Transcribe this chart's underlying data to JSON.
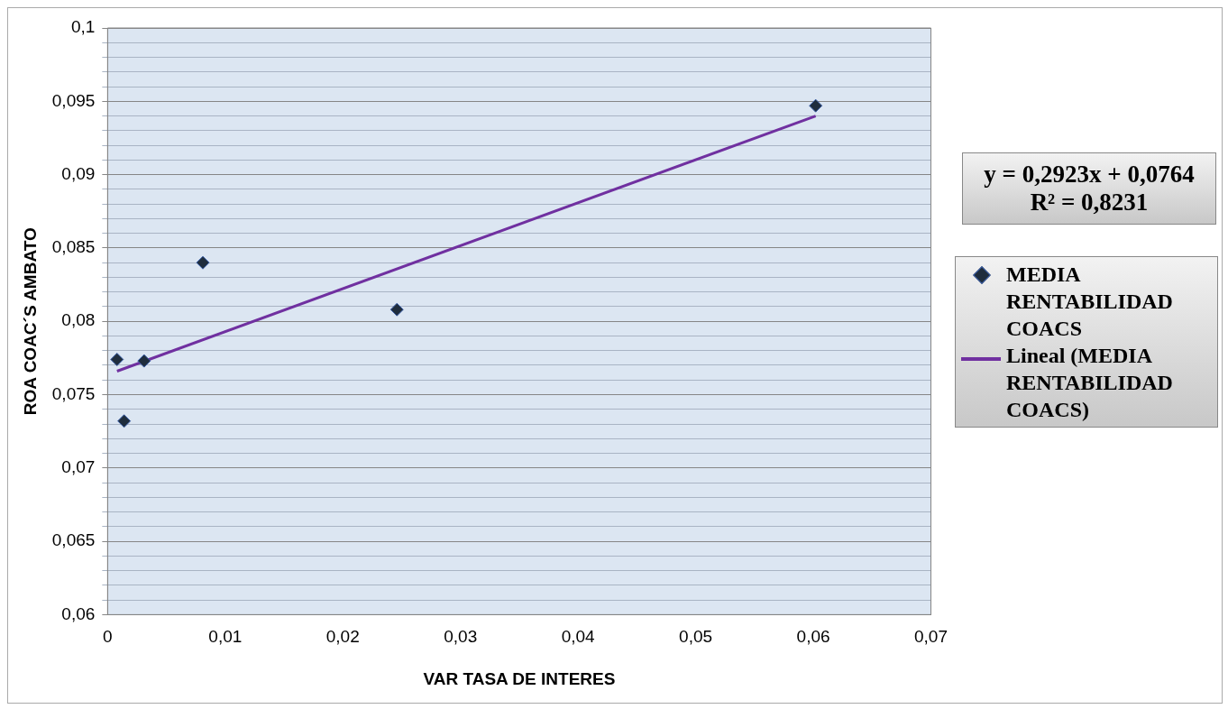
{
  "chart_data": {
    "type": "scatter",
    "xlabel": "VAR TASA DE INTERES",
    "ylabel": "ROA COAC´S AMBATO",
    "series": [
      {
        "name": "MEDIA RENTABILIDAD COACS",
        "type": "scatter",
        "color": "#1f2d3d",
        "marker": "diamond",
        "x": [
          0.0008,
          0.0014,
          0.0031,
          0.0081,
          0.0246,
          0.0602
        ],
        "values": [
          0.0774,
          0.0732,
          0.0773,
          0.084,
          0.0808,
          0.0947
        ]
      },
      {
        "name": "Lineal (MEDIA RENTABILIDAD COACS)",
        "type": "line",
        "color": "#7030a0",
        "marker": "none",
        "line_style": "solid",
        "x": [
          0.0008,
          0.0602
        ],
        "values": [
          0.0766,
          0.094
        ]
      }
    ],
    "xlim": [
      0,
      0.07
    ],
    "xticks": [
      {
        "value": 0,
        "label": "0"
      },
      {
        "value": 0.01,
        "label": "0,01"
      },
      {
        "value": 0.02,
        "label": "0,02"
      },
      {
        "value": 0.03,
        "label": "0,03"
      },
      {
        "value": 0.04,
        "label": "0,04"
      },
      {
        "value": 0.05,
        "label": "0,05"
      },
      {
        "value": 0.06,
        "label": "0,06"
      },
      {
        "value": 0.07,
        "label": "0,07"
      }
    ],
    "ylim": [
      0.06,
      0.1
    ],
    "yticks": [
      {
        "value": 0.06,
        "label": "0,06"
      },
      {
        "value": 0.061,
        "label": null
      },
      {
        "value": 0.062,
        "label": null
      },
      {
        "value": 0.063,
        "label": null
      },
      {
        "value": 0.064,
        "label": null
      },
      {
        "value": 0.065,
        "label": "0,065"
      },
      {
        "value": 0.066,
        "label": null
      },
      {
        "value": 0.067,
        "label": null
      },
      {
        "value": 0.068,
        "label": null
      },
      {
        "value": 0.069,
        "label": null
      },
      {
        "value": 0.07,
        "label": "0,07"
      },
      {
        "value": 0.071,
        "label": null
      },
      {
        "value": 0.072,
        "label": null
      },
      {
        "value": 0.073,
        "label": null
      },
      {
        "value": 0.074,
        "label": null
      },
      {
        "value": 0.075,
        "label": "0,075"
      },
      {
        "value": 0.076,
        "label": null
      },
      {
        "value": 0.077,
        "label": null
      },
      {
        "value": 0.078,
        "label": null
      },
      {
        "value": 0.079,
        "label": null
      },
      {
        "value": 0.08,
        "label": "0,08"
      },
      {
        "value": 0.081,
        "label": null
      },
      {
        "value": 0.082,
        "label": null
      },
      {
        "value": 0.083,
        "label": null
      },
      {
        "value": 0.084,
        "label": null
      },
      {
        "value": 0.085,
        "label": "0,085"
      },
      {
        "value": 0.086,
        "label": null
      },
      {
        "value": 0.087,
        "label": null
      },
      {
        "value": 0.088,
        "label": null
      },
      {
        "value": 0.089,
        "label": null
      },
      {
        "value": 0.09,
        "label": "0,09"
      },
      {
        "value": 0.091,
        "label": null
      },
      {
        "value": 0.092,
        "label": null
      },
      {
        "value": 0.093,
        "label": null
      },
      {
        "value": 0.094,
        "label": null
      },
      {
        "value": 0.095,
        "label": "0,095"
      },
      {
        "value": 0.096,
        "label": null
      },
      {
        "value": 0.097,
        "label": null
      },
      {
        "value": 0.098,
        "label": null
      },
      {
        "value": 0.099,
        "label": null
      },
      {
        "value": 0.1,
        "label": "0,1"
      }
    ],
    "grid": "y",
    "legend": "right",
    "annotations": [
      "y = 0,2923x + 0,0764\nR² = 0,8231"
    ]
  }
}
